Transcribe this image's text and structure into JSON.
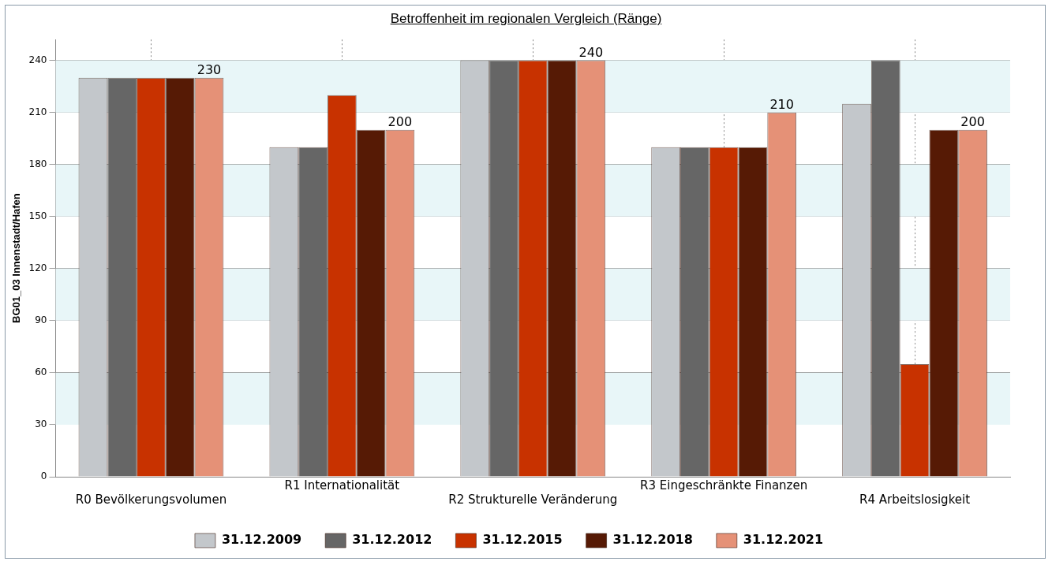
{
  "chart_data": {
    "type": "bar",
    "title": "Betroffenheit im regionalen Vergleich (Ränge)",
    "ylabel": "BG01_03 Innenstadt/Hafen",
    "categories": [
      "R0 Bevölkerungsvolumen",
      "R1 Internationalität",
      "R2 Strukturelle Veränderung",
      "R3 Eingeschränkte Finanzen",
      "R4 Arbeitslosigkeit"
    ],
    "series": [
      {
        "name": "31.12.2009",
        "color": "#c3c7cb",
        "values": [
          230,
          190,
          240,
          190,
          215
        ]
      },
      {
        "name": "31.12.2012",
        "color": "#666666",
        "values": [
          230,
          190,
          240,
          190,
          240
        ]
      },
      {
        "name": "31.12.2015",
        "color": "#c83200",
        "values": [
          230,
          220,
          240,
          190,
          65
        ]
      },
      {
        "name": "31.12.2018",
        "color": "#561a05",
        "values": [
          230,
          200,
          240,
          190,
          200
        ]
      },
      {
        "name": "31.12.2021",
        "color": "#e59177",
        "values": [
          230,
          200,
          240,
          210,
          200
        ],
        "value_labels": [
          "230",
          "200",
          "240",
          "210",
          "200"
        ]
      }
    ],
    "ylim": [
      0,
      252
    ],
    "yticks": [
      0,
      30,
      60,
      90,
      120,
      150,
      180,
      210,
      240
    ],
    "bands": [
      {
        "axis": "y",
        "from": 30,
        "to": 60,
        "color": "#e8f6f8"
      },
      {
        "axis": "y",
        "from": 90,
        "to": 120,
        "color": "#e8f6f8"
      },
      {
        "axis": "y",
        "from": 150,
        "to": 180,
        "color": "#e8f6f8"
      },
      {
        "axis": "y",
        "from": 210,
        "to": 240,
        "color": "#e8f6f8"
      }
    ],
    "grid": true,
    "legend": "bottom"
  }
}
